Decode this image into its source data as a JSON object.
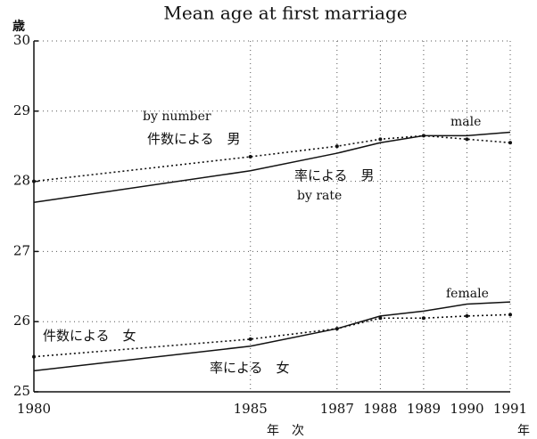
{
  "chart_data": {
    "type": "line",
    "title": "Mean age at first marriage",
    "ylabel": "歳",
    "xlabel": "年　次",
    "xunit": "年",
    "x": [
      1980,
      1985,
      1987,
      1988,
      1989,
      1990,
      1991
    ],
    "xlim": [
      1980,
      1991
    ],
    "xticks": [
      1980,
      1985,
      1987,
      1988,
      1989,
      1990,
      1991
    ],
    "ylim": [
      25,
      30
    ],
    "yticks": [
      25,
      26,
      27,
      28,
      29,
      30
    ],
    "grid": true,
    "series": [
      {
        "name": "件数による　男",
        "color": "#111111",
        "style": "dotted",
        "values": [
          28.0,
          28.35,
          28.5,
          28.6,
          28.65,
          28.6,
          28.55
        ]
      },
      {
        "name": "率による　男",
        "color": "#111111",
        "style": "solid",
        "values": [
          27.7,
          28.15,
          28.4,
          28.55,
          28.65,
          28.65,
          28.7
        ]
      },
      {
        "name": "件数による　女",
        "color": "#111111",
        "style": "dotted",
        "values": [
          25.5,
          25.75,
          25.9,
          26.05,
          26.05,
          26.08,
          26.1
        ]
      },
      {
        "name": "率による　女",
        "color": "#111111",
        "style": "solid",
        "values": [
          25.3,
          25.65,
          25.9,
          26.08,
          26.15,
          26.25,
          26.28
        ]
      }
    ],
    "annotations": [
      "by number",
      "by rate",
      "male",
      "female"
    ]
  }
}
